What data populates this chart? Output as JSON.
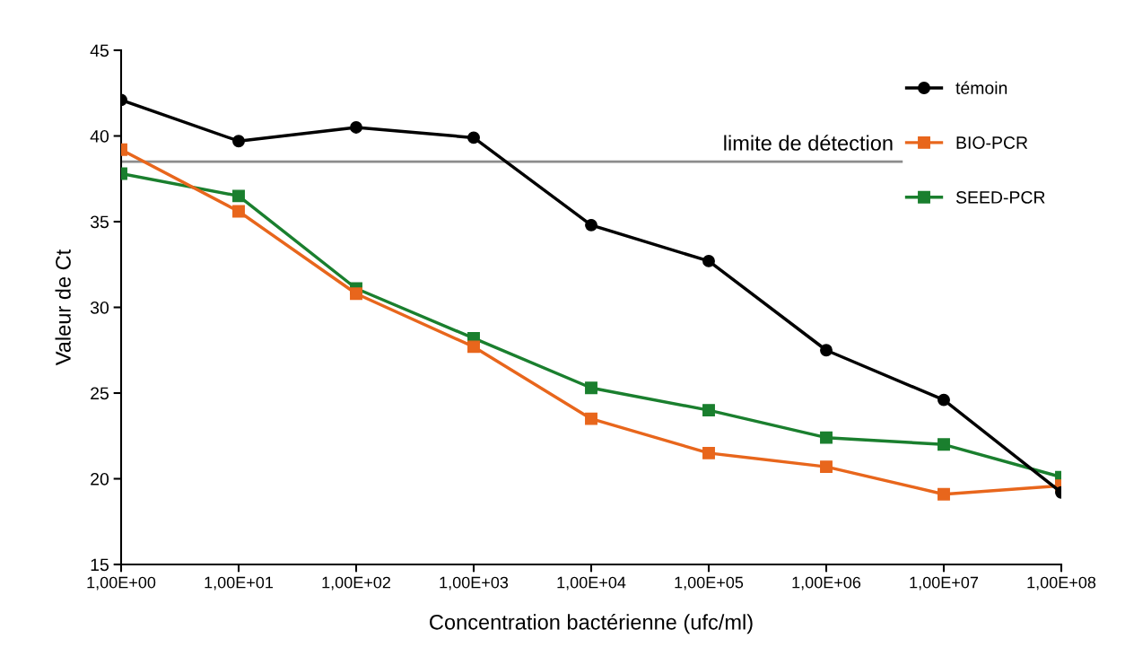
{
  "chart_data": {
    "type": "line",
    "xlabel": "Concentration bactérienne (ufc/ml)",
    "ylabel": "Valeur de Ct",
    "categories": [
      "1,00E+00",
      "1,00E+01",
      "1,00E+02",
      "1,00E+03",
      "1,00E+04",
      "1,00E+05",
      "1,00E+06",
      "1,00E+07",
      "1,00E+08"
    ],
    "series": [
      {
        "name": "témoin",
        "color": "#000000",
        "marker": "circle",
        "values": [
          42.1,
          39.7,
          40.5,
          39.9,
          34.8,
          32.7,
          27.5,
          24.6,
          19.2
        ]
      },
      {
        "name": "BIO-PCR",
        "color": "#e8661c",
        "marker": "square",
        "values": [
          39.2,
          35.6,
          30.8,
          27.7,
          23.5,
          21.5,
          20.7,
          19.1,
          19.6
        ]
      },
      {
        "name": "SEED-PCR",
        "color": "#1a7f2e",
        "marker": "square",
        "values": [
          37.8,
          36.5,
          31.1,
          28.2,
          25.3,
          24.0,
          22.4,
          22.0,
          20.1
        ]
      }
    ],
    "ylim": [
      15,
      45
    ],
    "yticks": [
      15,
      20,
      25,
      30,
      35,
      40,
      45
    ],
    "ref_lines": [
      {
        "axis": "y",
        "value": 38.5,
        "label": "limite de détection",
        "color": "#8c8c8c"
      }
    ],
    "legend": "top right",
    "grid": false,
    "line_style": "solid"
  }
}
